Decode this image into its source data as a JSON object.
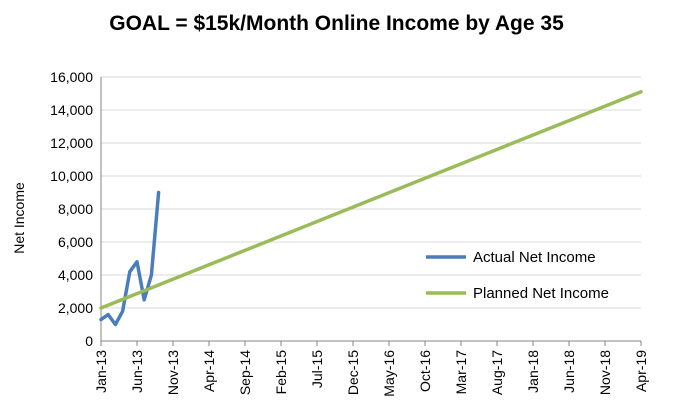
{
  "chart_data": {
    "type": "line",
    "title": "GOAL = $15k/Month Online Income by Age 35",
    "xlabel": "",
    "ylabel": "Net Income",
    "ylim": [
      0,
      16000
    ],
    "yticks": [
      "0",
      "2,000",
      "4,000",
      "6,000",
      "8,000",
      "10,000",
      "12,000",
      "14,000",
      "16,000"
    ],
    "xticks": [
      "Jan-13",
      "Jun-13",
      "Nov-13",
      "Apr-14",
      "Sep-14",
      "Feb-15",
      "Jul-15",
      "Dec-15",
      "May-16",
      "Oct-16",
      "Mar-17",
      "Aug-17",
      "Jan-18",
      "Jun-18",
      "Nov-18",
      "Apr-19"
    ],
    "xlim": [
      "2013-01",
      "2019-04"
    ],
    "grid": "horizontal",
    "legend": "right",
    "series": [
      {
        "name": "Actual Net Income",
        "color": "#4a7ebb",
        "x": [
          "2013-01",
          "2013-02",
          "2013-03",
          "2013-04",
          "2013-05",
          "2013-06",
          "2013-07",
          "2013-08",
          "2013-09"
        ],
        "values": [
          1300,
          1600,
          1000,
          1800,
          4200,
          4800,
          2500,
          4000,
          9000
        ]
      },
      {
        "name": "Planned Net Income",
        "color": "#9bbb59",
        "x": [
          "2013-01",
          "2019-04"
        ],
        "values": [
          2000,
          15100
        ]
      }
    ]
  }
}
